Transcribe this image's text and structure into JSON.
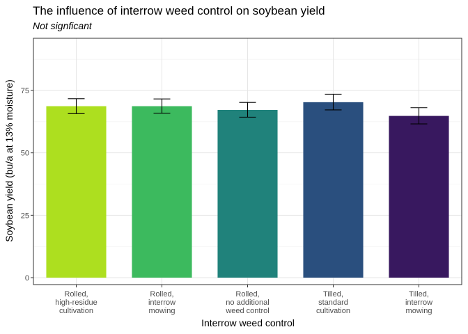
{
  "chart_data": {
    "type": "bar",
    "title": "The influence of interrow weed control on soybean yield",
    "subtitle": "Not signficant",
    "xlabel": "Interrow weed control",
    "ylabel": "Soybean yield (bu/a at 13% moisture)",
    "ylim": [
      0,
      94
    ],
    "yticks": [
      0,
      25,
      50,
      75
    ],
    "grid": true,
    "legend": "none",
    "categories": [
      [
        "Rolled,",
        "high-residue",
        "cultivation"
      ],
      [
        "Rolled,",
        "interrow",
        "mowing"
      ],
      [
        "Rolled,",
        "no additional",
        "weed control"
      ],
      [
        "Tilled,",
        "standard",
        "cultivation"
      ],
      [
        "Tilled,",
        "interrow",
        "mowing"
      ]
    ],
    "values": [
      68.7,
      68.7,
      67.2,
      70.3,
      64.8
    ],
    "error_low": [
      65.7,
      65.9,
      64.3,
      67.2,
      61.6
    ],
    "error_high": [
      71.7,
      71.6,
      70.2,
      73.5,
      68.1
    ],
    "colors": [
      "#addf1f",
      "#3cba5e",
      "#20827b",
      "#2a4f7e",
      "#38185f"
    ]
  }
}
